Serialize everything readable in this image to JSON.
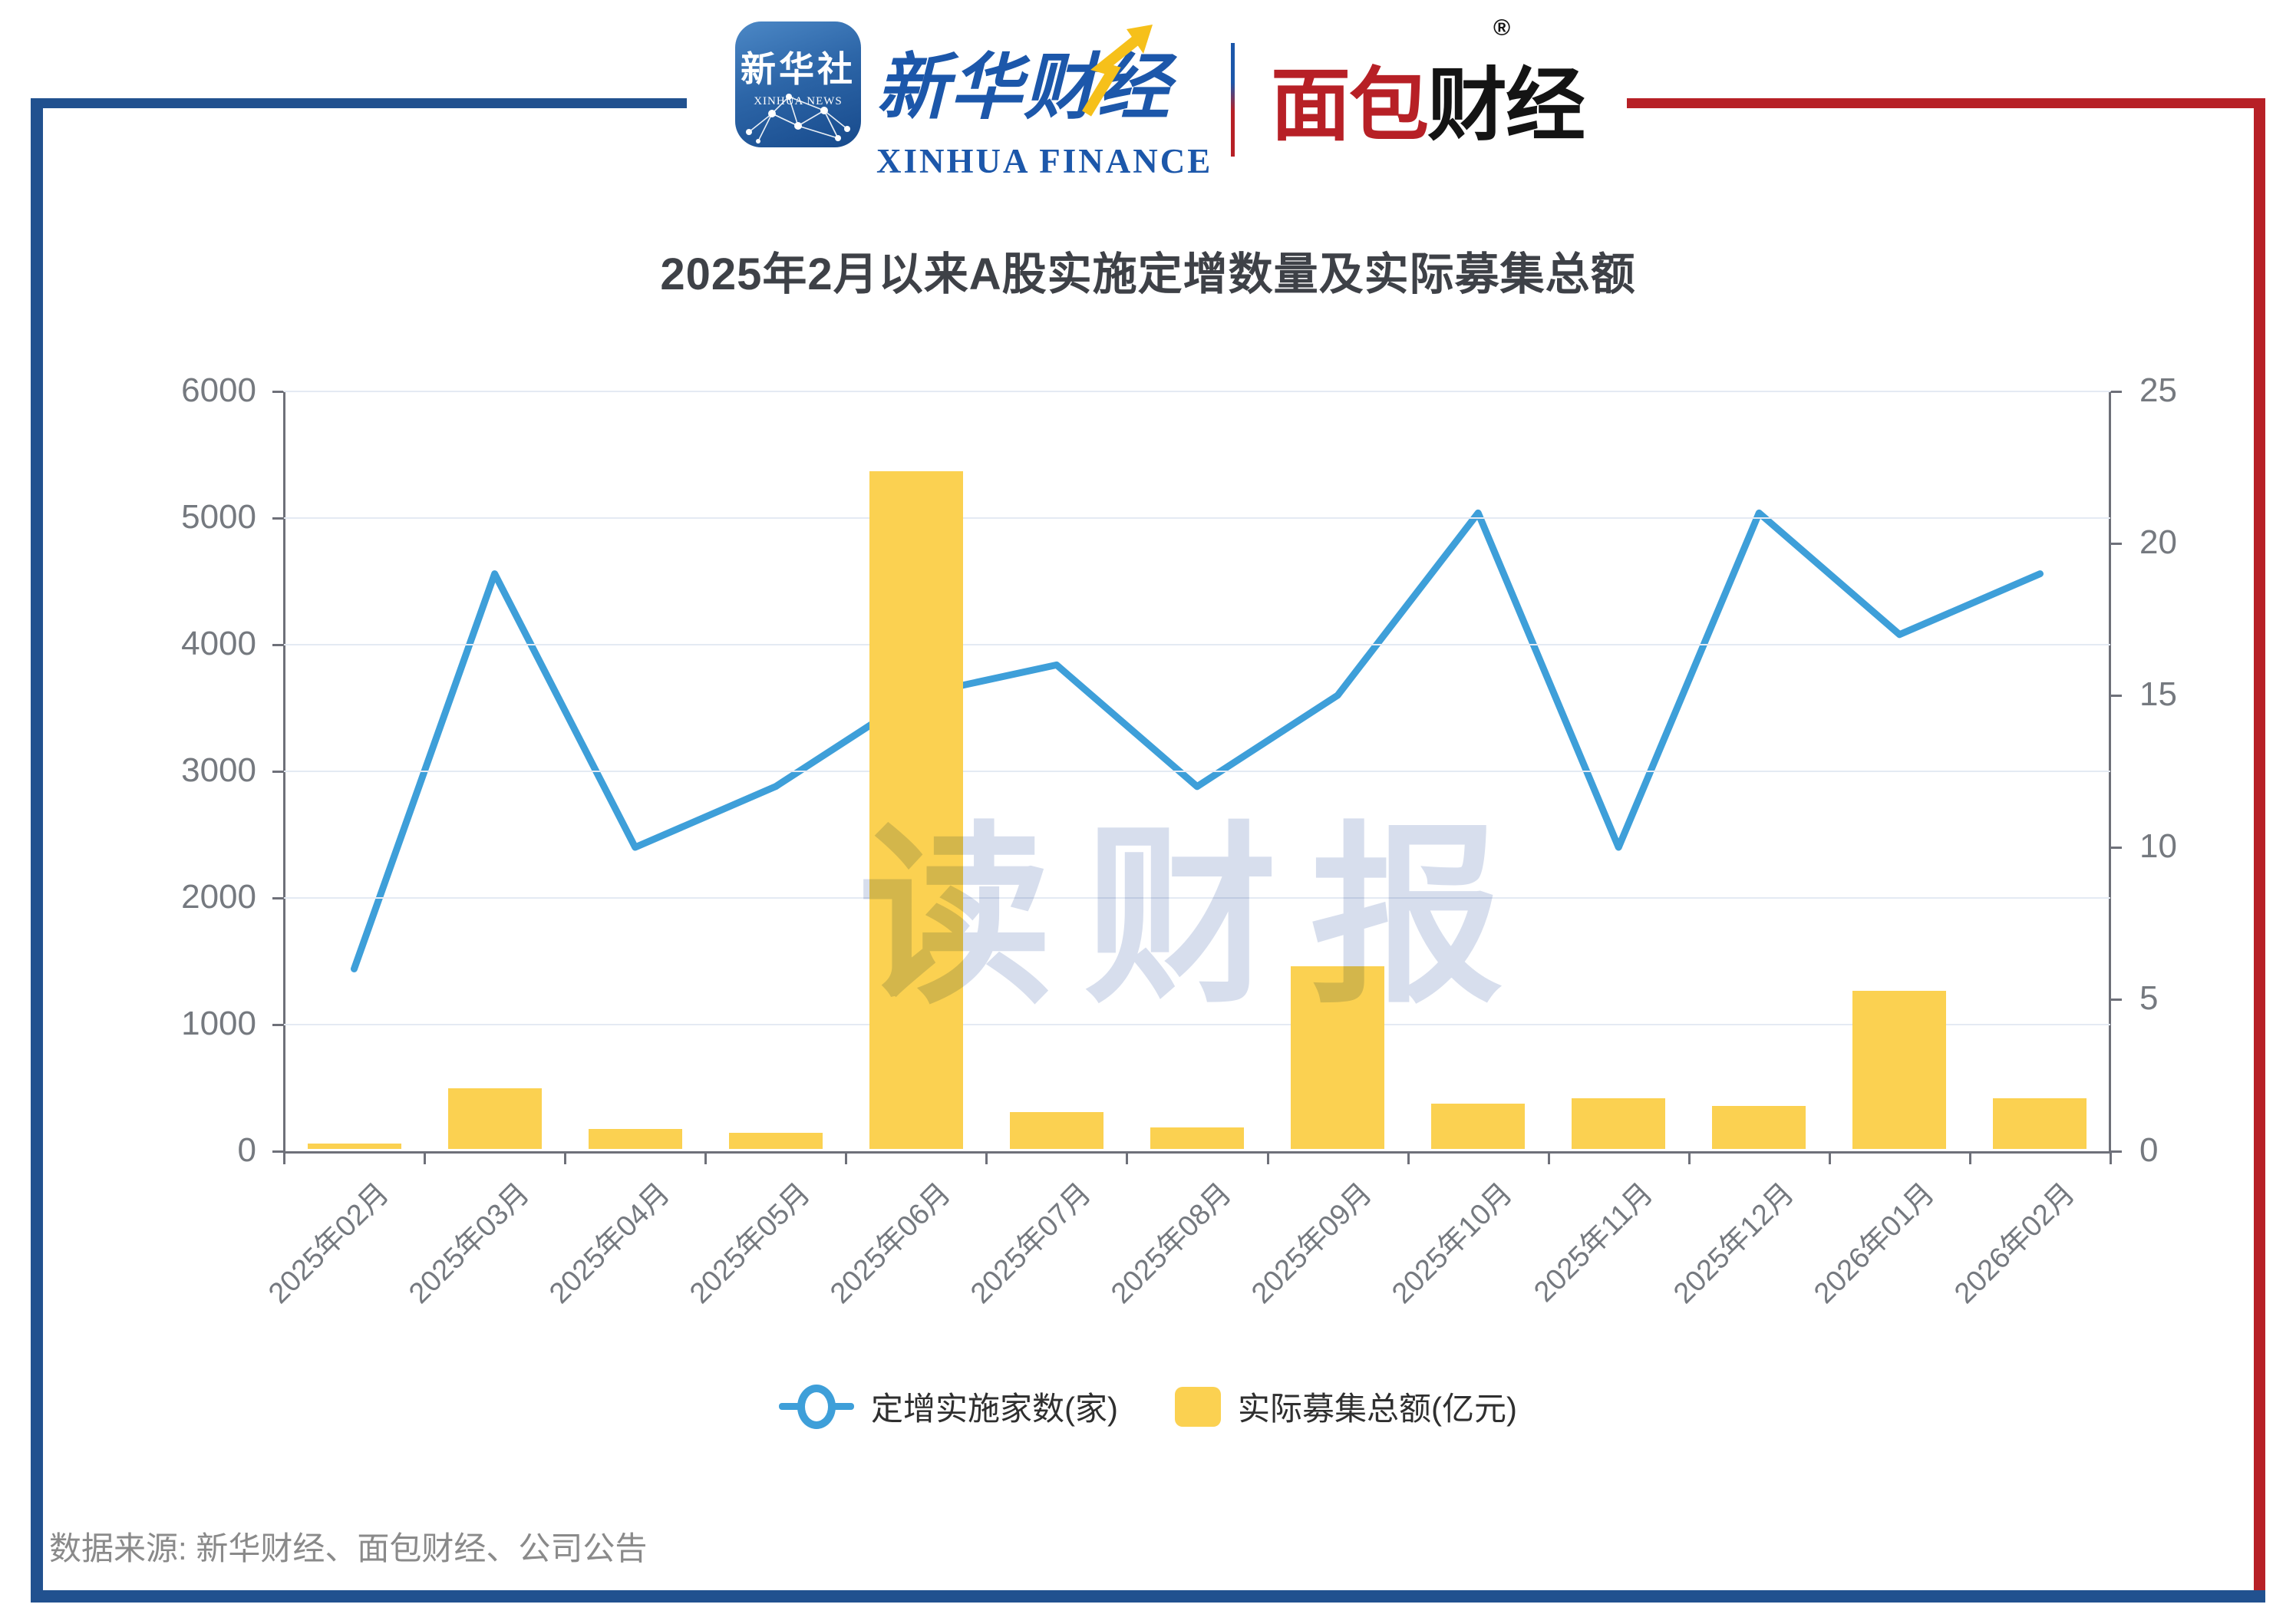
{
  "header": {
    "xinhua_icon": {
      "line1": "新华社",
      "line2": "XINHUA NEWS"
    },
    "xinhua_calligraphy": "新华财经",
    "xinhua_finance_en": "XINHUA FINANCE",
    "mianbao_red": "面包",
    "mianbao_black": "财经",
    "registered_mark": "®"
  },
  "title": "2025年2月以来A股实施定增数量及实际募集总额",
  "watermark": "读财报",
  "legend": {
    "line_label": "定增实施家数(家)",
    "bar_label": "实际募集总额(亿元)"
  },
  "source": "数据来源: 新华财经、面包财经、公司公告",
  "colors": {
    "line": "#3E9FD9",
    "bar": "#FBD151",
    "border_blue": "#21518F",
    "border_red": "#B72026",
    "grid": "#E4EAF3",
    "axis": "#6E7079",
    "watermark": "#D4DCEC"
  },
  "chart_data": {
    "type": "bar",
    "subtype": "dual-axis bar + line",
    "title": "2025年2月以来A股实施定增数量及实际募集总额",
    "categories": [
      "2025年02月",
      "2025年03月",
      "2025年04月",
      "2025年05月",
      "2025年06月",
      "2025年07月",
      "2025年08月",
      "2025年09月",
      "2025年10月",
      "2025年11月",
      "2025年12月",
      "2026年01月",
      "2026年02月"
    ],
    "series": [
      {
        "name": "定增实施家数(家)",
        "type": "line",
        "axis": "right",
        "values": [
          6,
          19,
          10,
          12,
          15,
          16,
          12,
          15,
          21,
          10,
          21,
          17,
          19
        ]
      },
      {
        "name": "实际募集总额(亿元)",
        "type": "bar",
        "axis": "left",
        "values": [
          40,
          480,
          160,
          130,
          5350,
          290,
          170,
          1440,
          360,
          400,
          340,
          1250,
          400
        ]
      }
    ],
    "left_axis": {
      "min": 0,
      "max": 6000,
      "step": 1000,
      "labels": [
        "6000",
        "5000",
        "4000",
        "3000",
        "2000",
        "1000",
        "0"
      ]
    },
    "right_axis": {
      "min": 0,
      "max": 25,
      "step": 5,
      "labels": [
        "25",
        "20",
        "15",
        "10",
        "5",
        "0"
      ]
    },
    "grid": true,
    "legend_position": "bottom"
  }
}
